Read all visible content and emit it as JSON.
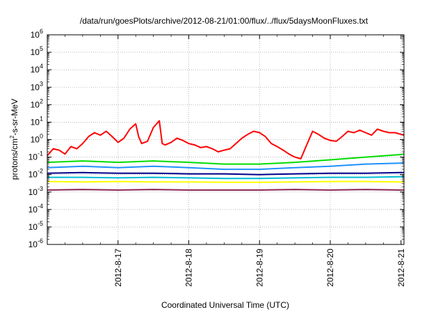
{
  "chart_data": {
    "type": "line",
    "title": "/data/run/goesPlots/archive/2012-08-21/01:00/flux/../flux/5daysMoonFluxes.txt",
    "xlabel": "Coordinated Universal Time (UTC)",
    "ylabel": {
      "pre": "protons/cm",
      "sup": "2",
      "post": "-s-sr-MeV"
    },
    "y_scale": "log",
    "ylim": [
      "1e-6",
      "1e6"
    ],
    "xlim": [
      "2012-08-16 00:00",
      "2012-08-21 01:00"
    ],
    "grid": true,
    "legend": "none",
    "x_ticks": [
      {
        "label": "2012-8-17",
        "value": "2012-08-17 00:00"
      },
      {
        "label": "2012-8-18",
        "value": "2012-08-18 00:00"
      },
      {
        "label": "2012-8-19",
        "value": "2012-08-19 00:00"
      },
      {
        "label": "2012-8-20",
        "value": "2012-08-20 00:00"
      },
      {
        "label": "2012-8-21",
        "value": "2012-08-21 00:00"
      }
    ],
    "y_ticks": [
      {
        "base": "10",
        "exp": "6",
        "value": 1000000.0
      },
      {
        "base": "10",
        "exp": "5",
        "value": 100000.0
      },
      {
        "base": "10",
        "exp": "4",
        "value": 10000.0
      },
      {
        "base": "10",
        "exp": "3",
        "value": 1000.0
      },
      {
        "base": "10",
        "exp": "2",
        "value": 100.0
      },
      {
        "base": "10",
        "exp": "1",
        "value": 10.0
      },
      {
        "base": "10",
        "exp": "0",
        "value": 1
      },
      {
        "base": "10",
        "exp": "-1",
        "value": 0.1
      },
      {
        "base": "10",
        "exp": "-2",
        "value": 0.01
      },
      {
        "base": "10",
        "exp": "-3",
        "value": 0.001
      },
      {
        "base": "10",
        "exp": "-4",
        "value": 0.0001
      },
      {
        "base": "10",
        "exp": "-5",
        "value": 1e-05
      },
      {
        "base": "10",
        "exp": "-6",
        "value": 1e-06
      }
    ],
    "series": [
      {
        "color": "#ff0000",
        "x": [
          "2012-08-16 00:00",
          "2012-08-16 02:00",
          "2012-08-16 04:00",
          "2012-08-16 06:00",
          "2012-08-16 08:00",
          "2012-08-16 10:00",
          "2012-08-16 12:00",
          "2012-08-16 14:00",
          "2012-08-16 16:00",
          "2012-08-16 18:00",
          "2012-08-16 20:00",
          "2012-08-16 22:00",
          "2012-08-17 00:00",
          "2012-08-17 02:00",
          "2012-08-17 04:00",
          "2012-08-17 06:00",
          "2012-08-17 07:00",
          "2012-08-17 08:00",
          "2012-08-17 10:00",
          "2012-08-17 12:00",
          "2012-08-17 14:00",
          "2012-08-17 15:00",
          "2012-08-17 16:00",
          "2012-08-17 18:00",
          "2012-08-17 20:00",
          "2012-08-17 22:00",
          "2012-08-18 00:00",
          "2012-08-18 02:00",
          "2012-08-18 04:00",
          "2012-08-18 06:00",
          "2012-08-18 08:00",
          "2012-08-18 10:00",
          "2012-08-18 12:00",
          "2012-08-18 14:00",
          "2012-08-18 16:00",
          "2012-08-18 18:00",
          "2012-08-18 20:00",
          "2012-08-18 22:00",
          "2012-08-19 00:00",
          "2012-08-19 02:00",
          "2012-08-19 04:00",
          "2012-08-19 06:00",
          "2012-08-19 08:00",
          "2012-08-19 10:00",
          "2012-08-19 12:00",
          "2012-08-19 14:00",
          "2012-08-19 16:00",
          "2012-08-19 18:00",
          "2012-08-19 20:00",
          "2012-08-19 22:00",
          "2012-08-20 00:00",
          "2012-08-20 02:00",
          "2012-08-20 04:00",
          "2012-08-20 06:00",
          "2012-08-20 08:00",
          "2012-08-20 10:00",
          "2012-08-20 12:00",
          "2012-08-20 14:00",
          "2012-08-20 16:00",
          "2012-08-20 18:00",
          "2012-08-20 20:00",
          "2012-08-20 22:00",
          "2012-08-21 00:00",
          "2012-08-21 01:00"
        ],
        "y": [
          0.12,
          0.3,
          0.25,
          0.15,
          0.4,
          0.3,
          0.6,
          1.5,
          2.5,
          1.8,
          3,
          1.5,
          0.7,
          1.2,
          4,
          8,
          1.5,
          0.6,
          0.8,
          5,
          12,
          0.6,
          0.5,
          0.7,
          1.2,
          0.9,
          0.6,
          0.5,
          0.35,
          0.4,
          0.3,
          0.2,
          0.25,
          0.3,
          0.6,
          1.2,
          2,
          3,
          2.5,
          1.5,
          0.6,
          0.4,
          0.25,
          0.15,
          0.1,
          0.08,
          0.5,
          3,
          2,
          1.2,
          0.9,
          0.8,
          1.5,
          3,
          2.5,
          3.5,
          2.5,
          1.8,
          4,
          3,
          2.5,
          2.5,
          2,
          1.8
        ]
      },
      {
        "color": "#00dd00",
        "x": [
          "2012-08-16 00:00",
          "2012-08-16 12:00",
          "2012-08-17 00:00",
          "2012-08-17 12:00",
          "2012-08-18 00:00",
          "2012-08-18 12:00",
          "2012-08-19 00:00",
          "2012-08-19 12:00",
          "2012-08-20 00:00",
          "2012-08-20 12:00",
          "2012-08-21 00:00",
          "2012-08-21 01:00"
        ],
        "y": [
          0.05,
          0.06,
          0.05,
          0.06,
          0.05,
          0.04,
          0.04,
          0.05,
          0.07,
          0.1,
          0.14,
          0.15
        ]
      },
      {
        "color": "#1e90ff",
        "x": [
          "2012-08-16 00:00",
          "2012-08-16 12:00",
          "2012-08-17 00:00",
          "2012-08-17 12:00",
          "2012-08-18 00:00",
          "2012-08-18 12:00",
          "2012-08-19 00:00",
          "2012-08-19 12:00",
          "2012-08-20 00:00",
          "2012-08-20 12:00",
          "2012-08-21 00:00",
          "2012-08-21 01:00"
        ],
        "y": [
          0.025,
          0.03,
          0.025,
          0.03,
          0.025,
          0.02,
          0.02,
          0.025,
          0.03,
          0.04,
          0.045,
          0.05
        ]
      },
      {
        "color": "#00008b",
        "x": [
          "2012-08-16 00:00",
          "2012-08-16 12:00",
          "2012-08-17 00:00",
          "2012-08-17 12:00",
          "2012-08-18 00:00",
          "2012-08-18 12:00",
          "2012-08-19 00:00",
          "2012-08-19 12:00",
          "2012-08-20 00:00",
          "2012-08-20 12:00",
          "2012-08-21 00:00",
          "2012-08-21 01:00"
        ],
        "y": [
          0.012,
          0.013,
          0.012,
          0.012,
          0.011,
          0.011,
          0.01,
          0.011,
          0.012,
          0.012,
          0.013,
          0.013
        ]
      },
      {
        "color": "#00bcd4",
        "x": [
          "2012-08-16 00:00",
          "2012-08-16 12:00",
          "2012-08-17 00:00",
          "2012-08-17 12:00",
          "2012-08-18 00:00",
          "2012-08-18 12:00",
          "2012-08-19 00:00",
          "2012-08-19 12:00",
          "2012-08-20 00:00",
          "2012-08-20 12:00",
          "2012-08-21 00:00",
          "2012-08-21 01:00"
        ],
        "y": [
          0.007,
          0.007,
          0.0065,
          0.007,
          0.0065,
          0.006,
          0.006,
          0.0065,
          0.007,
          0.007,
          0.0075,
          0.0075
        ]
      },
      {
        "color": "#ffff00",
        "x": [
          "2012-08-16 00:00",
          "2012-08-16 12:00",
          "2012-08-17 00:00",
          "2012-08-17 12:00",
          "2012-08-18 00:00",
          "2012-08-18 12:00",
          "2012-08-19 00:00",
          "2012-08-19 12:00",
          "2012-08-20 00:00",
          "2012-08-20 12:00",
          "2012-08-21 00:00",
          "2012-08-21 01:00"
        ],
        "y": [
          0.004,
          0.0038,
          0.004,
          0.0038,
          0.0038,
          0.0036,
          0.0036,
          0.0038,
          0.004,
          0.004,
          0.0038,
          0.0038
        ]
      },
      {
        "color": "#8b2252",
        "x": [
          "2012-08-16 00:00",
          "2012-08-16 12:00",
          "2012-08-17 00:00",
          "2012-08-17 12:00",
          "2012-08-18 00:00",
          "2012-08-18 12:00",
          "2012-08-19 00:00",
          "2012-08-19 12:00",
          "2012-08-20 00:00",
          "2012-08-20 12:00",
          "2012-08-21 00:00",
          "2012-08-21 01:00"
        ],
        "y": [
          0.0013,
          0.0014,
          0.0013,
          0.0014,
          0.0013,
          0.0013,
          0.0013,
          0.0014,
          0.0013,
          0.0014,
          0.0013,
          0.0013
        ]
      }
    ]
  }
}
